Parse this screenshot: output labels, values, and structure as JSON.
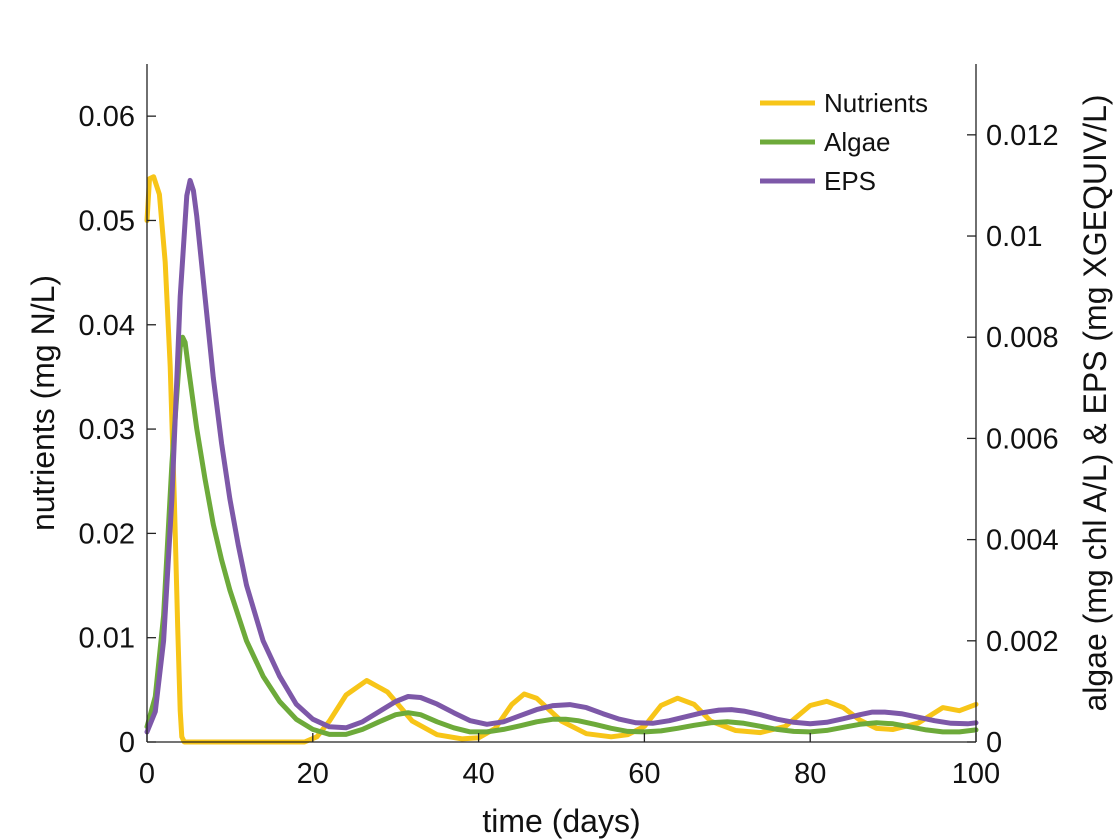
{
  "chart_data": {
    "type": "line",
    "title": "",
    "xlabel": "time (days)",
    "ylabel": "nutrients (mg N/L)",
    "y2label": "algae (mg chl A/L) & EPS (mg XGEQUIV/L)",
    "xlim": [
      0,
      100
    ],
    "ylim": [
      0,
      0.065
    ],
    "y2lim": [
      0,
      0.0134
    ],
    "x_ticks": [
      0,
      20,
      40,
      60,
      80,
      100
    ],
    "x_tick_labels": [
      "0",
      "20",
      "40",
      "60",
      "80",
      "100"
    ],
    "y_ticks": [
      0,
      0.01,
      0.02,
      0.03,
      0.04,
      0.05,
      0.06
    ],
    "y_tick_labels": [
      "0",
      "0.01",
      "0.02",
      "0.03",
      "0.04",
      "0.05",
      "0.06"
    ],
    "y2_ticks": [
      0,
      0.002,
      0.004,
      0.006,
      0.008,
      0.01,
      0.012
    ],
    "y2_tick_labels": [
      "0",
      "0.002",
      "0.004",
      "0.006",
      "0.008",
      "0.01",
      "0.012"
    ],
    "grid": false,
    "legend_position": "top-right",
    "series": [
      {
        "name": "Nutrients",
        "axis": "left",
        "color": "#F7C518",
        "x": [
          0,
          0.3,
          0.8,
          1.5,
          2.2,
          2.8,
          3.3,
          3.7,
          4.0,
          4.2,
          4.5,
          5,
          10,
          15,
          19,
          20.5,
          22,
          24,
          26.5,
          29,
          32,
          35,
          38,
          40,
          42,
          44,
          45.5,
          47,
          50,
          53,
          56,
          58,
          60,
          62,
          64,
          66,
          68,
          71,
          74,
          77,
          80,
          82,
          84,
          86,
          88,
          90,
          93,
          96,
          98,
          100
        ],
        "y": [
          0.05,
          0.054,
          0.0542,
          0.0525,
          0.046,
          0.036,
          0.023,
          0.011,
          0.003,
          0.0005,
          0.0,
          0.0,
          0.0,
          0.0,
          0.0,
          0.0005,
          0.002,
          0.0045,
          0.0059,
          0.0048,
          0.002,
          0.0007,
          0.0003,
          0.0004,
          0.0013,
          0.0036,
          0.0046,
          0.0042,
          0.002,
          0.0008,
          0.0005,
          0.0007,
          0.0015,
          0.0035,
          0.0042,
          0.0036,
          0.002,
          0.0011,
          0.0009,
          0.0015,
          0.0035,
          0.0039,
          0.0033,
          0.0021,
          0.0013,
          0.0012,
          0.0018,
          0.0033,
          0.003,
          0.0036
        ]
      },
      {
        "name": "Algae",
        "axis": "right",
        "color": "#6DAA3A",
        "x": [
          0,
          1,
          2,
          3,
          4,
          4.3,
          4.6,
          5,
          6,
          7,
          8,
          9,
          10,
          12,
          14,
          16,
          18,
          20,
          22,
          24,
          26,
          28,
          30,
          31.5,
          33,
          35,
          37,
          39,
          41,
          43,
          45,
          47,
          49,
          50.5,
          52,
          54,
          56,
          58,
          60,
          62,
          64,
          66,
          68,
          70,
          72,
          74,
          76,
          78,
          80,
          82,
          84,
          86,
          88,
          90,
          92,
          94,
          96,
          98,
          100
        ],
        "y": [
          0.0003,
          0.0009,
          0.0025,
          0.0055,
          0.0078,
          0.008,
          0.0079,
          0.0074,
          0.0062,
          0.0052,
          0.0043,
          0.0036,
          0.003,
          0.002,
          0.0013,
          0.0008,
          0.00045,
          0.00025,
          0.00015,
          0.00015,
          0.00025,
          0.0004,
          0.00054,
          0.00058,
          0.00054,
          0.0004,
          0.00028,
          0.0002,
          0.0002,
          0.00025,
          0.00032,
          0.0004,
          0.00045,
          0.00045,
          0.00042,
          0.00035,
          0.00027,
          0.00021,
          0.0002,
          0.00022,
          0.00027,
          0.00033,
          0.00038,
          0.0004,
          0.00037,
          0.00031,
          0.00025,
          0.00021,
          0.0002,
          0.00023,
          0.00029,
          0.00035,
          0.00038,
          0.00036,
          0.0003,
          0.00024,
          0.0002,
          0.0002,
          0.00024
        ]
      },
      {
        "name": "EPS",
        "axis": "right",
        "color": "#7D58A8",
        "x": [
          0,
          1,
          2,
          3,
          4,
          4.8,
          5.2,
          5.6,
          6,
          7,
          8,
          9,
          10,
          11,
          12,
          14,
          16,
          18,
          20,
          22,
          24,
          26,
          28,
          30,
          31.5,
          33,
          35,
          37,
          39,
          41,
          43,
          45,
          47,
          49,
          51,
          53,
          55,
          57,
          59,
          61,
          63,
          65,
          67,
          69,
          70.5,
          72,
          74,
          76,
          78,
          80,
          82,
          84,
          86,
          87.5,
          89,
          91,
          93,
          95,
          97,
          99,
          100
        ],
        "y": [
          0.0002,
          0.0006,
          0.002,
          0.0048,
          0.0088,
          0.0108,
          0.0111,
          0.0109,
          0.0104,
          0.0088,
          0.0072,
          0.0059,
          0.0048,
          0.0039,
          0.0031,
          0.002,
          0.0013,
          0.00075,
          0.00045,
          0.0003,
          0.00028,
          0.0004,
          0.0006,
          0.0008,
          0.0009,
          0.00088,
          0.00075,
          0.00058,
          0.00042,
          0.00035,
          0.0004,
          0.00052,
          0.00064,
          0.00072,
          0.00074,
          0.00068,
          0.00056,
          0.00045,
          0.00038,
          0.00037,
          0.00042,
          0.0005,
          0.00058,
          0.00063,
          0.00064,
          0.00061,
          0.00054,
          0.00045,
          0.00039,
          0.00036,
          0.00039,
          0.00046,
          0.00054,
          0.00059,
          0.00059,
          0.00056,
          0.00049,
          0.00042,
          0.00037,
          0.00036,
          0.00038
        ]
      }
    ]
  }
}
